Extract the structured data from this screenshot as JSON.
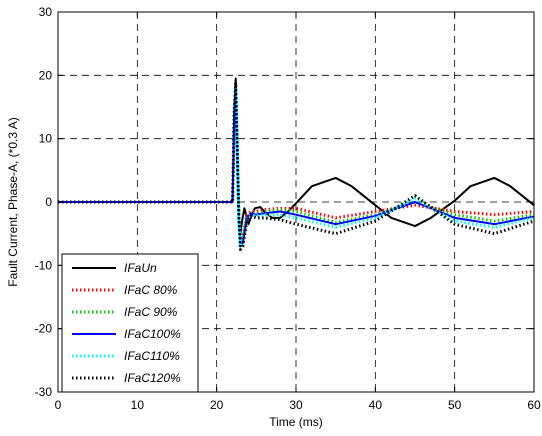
{
  "chart_data": {
    "type": "line",
    "title": "",
    "xlabel": "Time (ms)",
    "ylabel": "Fault Current, Phase-A, (*0.3 A)",
    "xlim": [
      0,
      60
    ],
    "ylim": [
      -30,
      30
    ],
    "xticks": [
      0,
      10,
      20,
      30,
      40,
      50,
      60
    ],
    "yticks": [
      -30,
      -20,
      -10,
      0,
      10,
      20,
      30
    ],
    "xtick_labels": [
      "0",
      "10",
      "20",
      "30",
      "40",
      "50",
      "60"
    ],
    "ytick_labels": [
      "-30",
      "-20",
      "-10",
      "0",
      "10",
      "20",
      "30"
    ],
    "grid": true,
    "legend_position": "bottom-left",
    "series": [
      {
        "name": "IFaUn",
        "color": "#000000",
        "style": "solid",
        "x": [
          0,
          22,
          22.1,
          22.2,
          22.4,
          22.6,
          22.8,
          23.0,
          23.2,
          23.5,
          24.0,
          24.3,
          24.8,
          25.5,
          26.0,
          27.0,
          28.0,
          29.0,
          30.0,
          32.0,
          35.0,
          37.0,
          40.0,
          42.0,
          45.0,
          47.0,
          50.0,
          52.0,
          55.0,
          57.0,
          60.0
        ],
        "y": [
          0,
          0,
          6,
          14,
          19.5,
          8,
          -2,
          -5,
          -3,
          -1,
          -3.5,
          -2.5,
          -1,
          -0.8,
          -1.5,
          -2.5,
          -2.5,
          -1.5,
          -0.2,
          2.5,
          3.8,
          2.5,
          -0.5,
          -2.5,
          -3.8,
          -2.5,
          0.2,
          2.5,
          3.8,
          2.5,
          -0.5
        ]
      },
      {
        "name": "IFaC 80%",
        "color": "#ff0000",
        "style": "dotted",
        "x": [
          0,
          22,
          22.1,
          22.2,
          22.4,
          22.6,
          22.8,
          23.0,
          23.3,
          23.8,
          24.3,
          25.0,
          26.0,
          28.0,
          30.0,
          35.0,
          40.0,
          45.0,
          50.0,
          55.0,
          60.0
        ],
        "y": [
          0,
          0,
          6,
          13,
          17.5,
          8,
          -2,
          -6,
          -5.5,
          -2,
          -1.5,
          -1.5,
          -1.2,
          -1,
          -1,
          -2.5,
          -1.5,
          -0.5,
          -1.5,
          -2,
          -1.5
        ]
      },
      {
        "name": "IFaC 90%",
        "color": "#00cc00",
        "style": "dotted",
        "x": [
          0,
          22,
          22.1,
          22.2,
          22.4,
          22.6,
          22.8,
          23.0,
          23.3,
          23.8,
          24.3,
          25.0,
          26.0,
          28.0,
          30.0,
          35.0,
          40.0,
          45.0,
          50.0,
          55.0,
          60.0
        ],
        "y": [
          0,
          0,
          6,
          13,
          17.8,
          8,
          -2.5,
          -6.5,
          -6,
          -2.5,
          -1.8,
          -1.8,
          -1.5,
          -1.2,
          -1.5,
          -3.2,
          -2,
          0,
          -2,
          -3,
          -2
        ]
      },
      {
        "name": "IFaC100%",
        "color": "#0000ff",
        "style": "solid",
        "x": [
          0,
          22,
          22.1,
          22.2,
          22.4,
          22.6,
          22.8,
          23.0,
          23.3,
          23.8,
          24.3,
          25.0,
          26.0,
          28.0,
          30.0,
          35.0,
          40.0,
          45.0,
          50.0,
          55.0,
          60.0
        ],
        "y": [
          0,
          0,
          6,
          13,
          18,
          8,
          -2.5,
          -7,
          -6.5,
          -2.5,
          -1.8,
          -2,
          -1.8,
          -1.5,
          -2,
          -3.5,
          -2.2,
          0,
          -2.5,
          -3.5,
          -2.3
        ]
      },
      {
        "name": "IFaC110%",
        "color": "#00ffff",
        "style": "dotted",
        "x": [
          0,
          22,
          22.1,
          22.2,
          22.4,
          22.6,
          22.8,
          23.0,
          23.3,
          23.8,
          24.3,
          25.0,
          26.0,
          28.0,
          30.0,
          35.0,
          40.0,
          45.0,
          50.0,
          55.0,
          60.0
        ],
        "y": [
          0,
          0,
          6,
          13.5,
          18.3,
          8,
          -2.5,
          -7,
          -6.8,
          -2.8,
          -2,
          -2.2,
          -2,
          -2,
          -2.5,
          -4,
          -2.5,
          0.5,
          -3,
          -4,
          -2.5
        ]
      },
      {
        "name": "IFaC120%",
        "color": "#000000",
        "style": "dotted",
        "x": [
          0,
          22,
          22.1,
          22.2,
          22.4,
          22.6,
          22.8,
          23.0,
          23.3,
          23.8,
          24.3,
          25.0,
          26.0,
          28.0,
          30.0,
          35.0,
          40.0,
          45.0,
          50.0,
          55.0,
          60.0
        ],
        "y": [
          0,
          0,
          6,
          14,
          18.8,
          8,
          -3,
          -7.5,
          -7,
          -3,
          -2.2,
          -2.5,
          -2.5,
          -2.8,
          -3.5,
          -5,
          -3,
          1,
          -3.5,
          -5,
          -3
        ]
      }
    ]
  }
}
